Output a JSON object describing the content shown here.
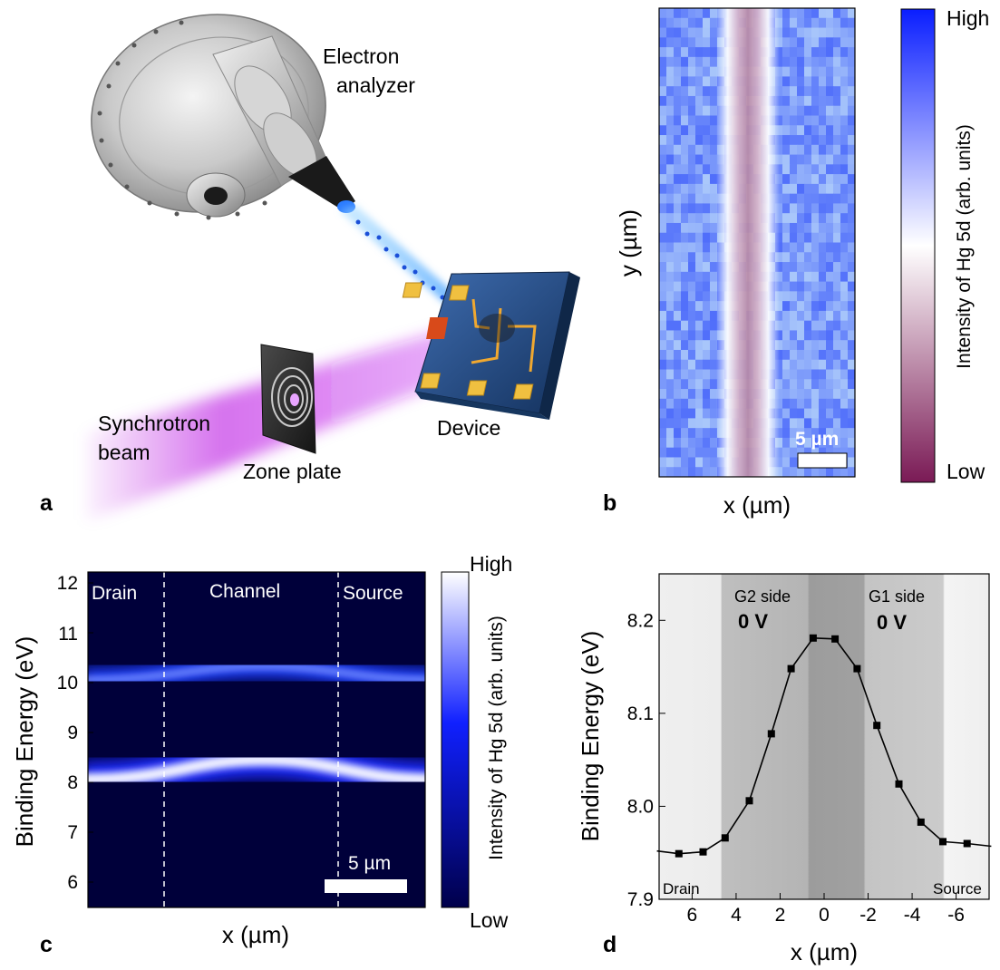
{
  "panel_a": {
    "letter": "a",
    "labels": {
      "analyzer_line1": "Electron",
      "analyzer_line2": "analyzer",
      "beam_line1": "Synchrotron",
      "beam_line2": "beam",
      "zone_plate": "Zone plate",
      "device": "Device"
    },
    "colors": {
      "beam": "#b400e0",
      "chip": "#1f3f6e",
      "pads": "#f0c040"
    }
  },
  "panel_b": {
    "letter": "b",
    "xlabel": "x (µm)",
    "ylabel": "y (µm)",
    "scalebar": "5 µm",
    "colorbar": {
      "high": "High",
      "low": "Low",
      "label": "Intensity of Hg 5d (arb. units)"
    },
    "colors": {
      "high": "#0a1eff",
      "mid": "#ffffff",
      "low": "#7a1a55"
    }
  },
  "panel_c": {
    "letter": "c",
    "xlabel": "x (µm)",
    "ylabel": "Binding Energy (eV)",
    "yticks": [
      "12",
      "11",
      "10",
      "9",
      "8",
      "7",
      "6"
    ],
    "regions": [
      "Drain",
      "Channel",
      "Source"
    ],
    "scalebar": "5 µm",
    "colorbar": {
      "high": "High",
      "low": "Low",
      "label": "Intensity of Hg 5d (arb. units)"
    },
    "colors": {
      "low": "#00004a",
      "mid": "#1020ff",
      "high": "#ffffff"
    }
  },
  "panel_d": {
    "letter": "d",
    "annotations": {
      "g2_side": "G2 side",
      "g2_voltage": "0 V",
      "g1_side": "G1 side",
      "g1_voltage": "0 V",
      "drain": "Drain",
      "source": "Source"
    }
  },
  "chart_data": [
    {
      "type": "line",
      "panel": "d",
      "xlabel": "x (µm)",
      "ylabel": "Binding Energy (eV)",
      "xlim": [
        7.5,
        -7.5
      ],
      "ylim": [
        7.9,
        8.25
      ],
      "xticks": [
        6,
        4,
        2,
        0,
        -2,
        -4,
        -6
      ],
      "xtick_labels": [
        "6",
        "4",
        "2",
        "0",
        "-2",
        "-4",
        "-6"
      ],
      "yticks": [
        7.9,
        8.0,
        8.1,
        8.2
      ],
      "ytick_labels": [
        "7.9",
        "8.0",
        "8.1",
        "8.2"
      ],
      "x": [
        7.6,
        6.6,
        5.5,
        4.5,
        3.4,
        2.4,
        1.5,
        0.5,
        -0.5,
        -1.5,
        -2.4,
        -3.4,
        -4.4,
        -5.4,
        -6.5,
        -7.6
      ],
      "y": [
        7.952,
        7.949,
        7.951,
        7.966,
        8.006,
        8.078,
        8.148,
        8.181,
        8.18,
        8.148,
        8.087,
        8.024,
        7.983,
        7.962,
        7.96,
        7.957
      ],
      "marker": "square",
      "color": "#000000"
    }
  ]
}
